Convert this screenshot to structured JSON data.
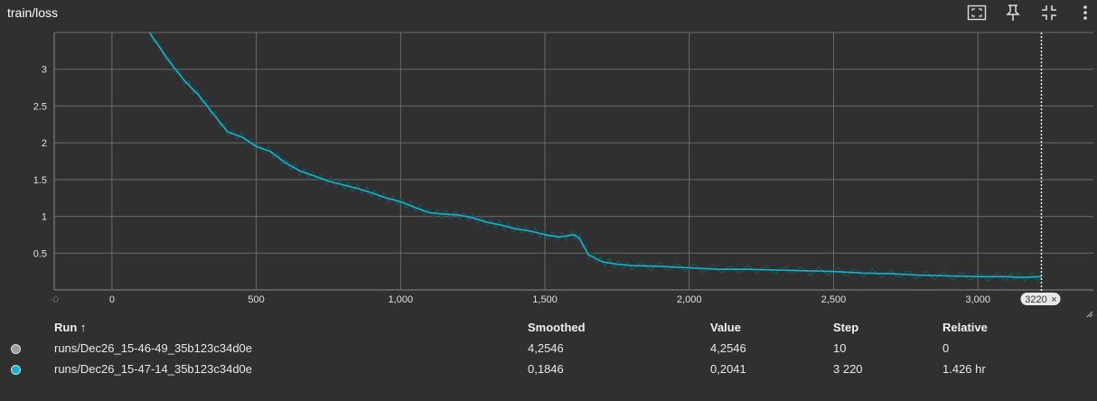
{
  "card": {
    "title": "train/loss"
  },
  "toolbar": {
    "icons": [
      "fit-domain-icon",
      "pin-icon",
      "collapse-icon",
      "more-vert-icon"
    ]
  },
  "colors": {
    "background": "#303030",
    "grid": "#6b6b6b",
    "series_run1": "#808080",
    "series_run2": "#12b5cb",
    "raw_run2": "#1f4d55",
    "text": "#e8e8e8"
  },
  "chart_data": {
    "type": "line",
    "title": "",
    "xlabel": "",
    "ylabel": "",
    "xlim": [
      -200,
      3400
    ],
    "ylim": [
      0,
      3.5
    ],
    "x_ticks": [
      0,
      500,
      1000,
      1500,
      2000,
      2500,
      3000
    ],
    "x_tick_labels": [
      "0",
      "500",
      "1,000",
      "1,500",
      "2,000",
      "2,500",
      "3,000"
    ],
    "y_ticks": [
      0.5,
      1,
      1.5,
      2,
      2.5,
      3
    ],
    "y_tick_labels": [
      "0.5",
      "1",
      "1.5",
      "2",
      "2.5",
      "3"
    ],
    "hover_step_label": "3220",
    "hover_step": 3220,
    "series": [
      {
        "name": "runs/Dec26_15-47-14_35b123c34d0e",
        "x": [
          130,
          200,
          250,
          300,
          350,
          400,
          450,
          500,
          550,
          600,
          650,
          700,
          750,
          800,
          850,
          900,
          950,
          1000,
          1050,
          1100,
          1150,
          1200,
          1250,
          1300,
          1350,
          1400,
          1450,
          1500,
          1550,
          1600,
          1620,
          1650,
          1700,
          1750,
          1800,
          1900,
          2000,
          2100,
          2200,
          2300,
          2400,
          2500,
          2600,
          2700,
          2800,
          2900,
          3000,
          3100,
          3150,
          3220
        ],
        "values": [
          3.5,
          3.1,
          2.85,
          2.65,
          2.4,
          2.15,
          2.08,
          1.95,
          1.88,
          1.73,
          1.62,
          1.55,
          1.48,
          1.43,
          1.38,
          1.32,
          1.25,
          1.2,
          1.12,
          1.05,
          1.03,
          1.02,
          0.98,
          0.92,
          0.88,
          0.83,
          0.8,
          0.75,
          0.72,
          0.75,
          0.7,
          0.48,
          0.38,
          0.35,
          0.33,
          0.32,
          0.3,
          0.28,
          0.28,
          0.27,
          0.26,
          0.25,
          0.23,
          0.22,
          0.2,
          0.19,
          0.18,
          0.18,
          0.17,
          0.18
        ]
      }
    ]
  },
  "table": {
    "headers": {
      "run": "Run ↑",
      "smoothed": "Smoothed",
      "value": "Value",
      "step": "Step",
      "relative": "Relative"
    },
    "rows": [
      {
        "color": "#9e9e9e",
        "run": "runs/Dec26_15-46-49_35b123c34d0e",
        "smoothed": "4,2546",
        "value": "4,2546",
        "step": "10",
        "relative": "0"
      },
      {
        "color": "#12b5cb",
        "run": "runs/Dec26_15-47-14_35b123c34d0e",
        "smoothed": "0,1846",
        "value": "0,2041",
        "step": "3 220",
        "relative": "1.426 hr"
      }
    ]
  }
}
